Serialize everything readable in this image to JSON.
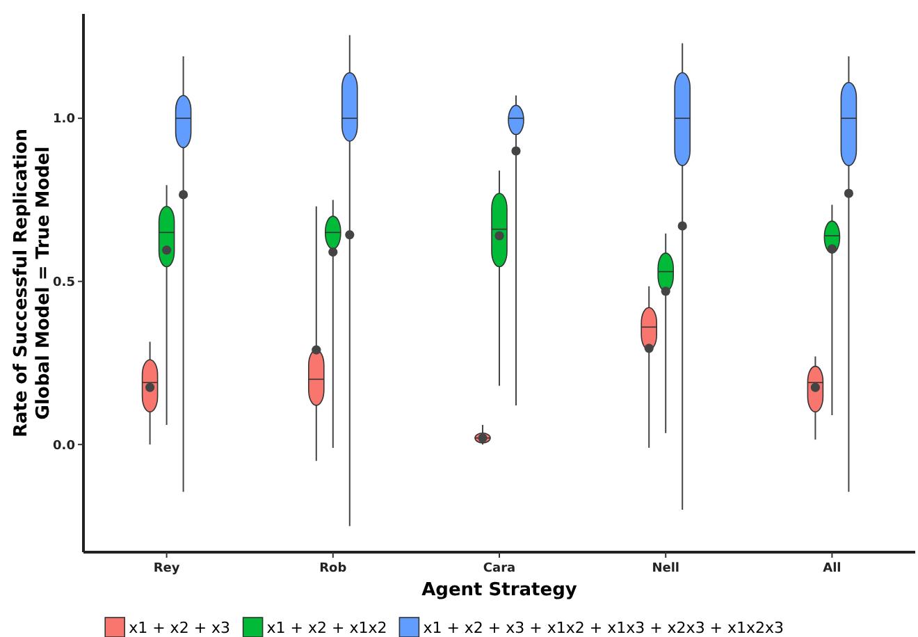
{
  "chart_data": {
    "type": "box",
    "xlabel": "Agent Strategy",
    "ylabel": "Rate of Successful Replication\nGlobal Model = True Model",
    "categories": [
      "Rey",
      "Rob",
      "Cara",
      "Nell",
      "All"
    ],
    "ylim": [
      -0.33,
      1.32
    ],
    "yticks": [
      {
        "value": 0,
        "label": "0.0"
      },
      {
        "value": 0.5,
        "label": "0.5"
      },
      {
        "value": 1,
        "label": "1.0"
      }
    ],
    "grid": false,
    "legend": "bottom",
    "series": [
      {
        "name": "x1 + x2 + x3",
        "color": "#f8766d",
        "boxes": [
          {
            "low": 0.0,
            "q1": 0.1,
            "median": 0.19,
            "q3": 0.26,
            "high": 0.315,
            "mean": 0.175
          },
          {
            "low": -0.05,
            "q1": 0.12,
            "median": 0.2,
            "q3": 0.29,
            "high": 0.73,
            "mean": 0.29
          },
          {
            "low": 0.0,
            "q1": 0.005,
            "median": 0.02,
            "q3": 0.035,
            "high": 0.06,
            "mean": 0.02
          },
          {
            "low": -0.01,
            "q1": 0.29,
            "median": 0.36,
            "q3": 0.42,
            "high": 0.485,
            "mean": 0.295
          },
          {
            "low": 0.015,
            "q1": 0.1,
            "median": 0.19,
            "q3": 0.24,
            "high": 0.27,
            "mean": 0.175
          }
        ]
      },
      {
        "name": "x1 + x2 + x1x2",
        "color": "#00ba38",
        "boxes": [
          {
            "low": 0.06,
            "q1": 0.545,
            "median": 0.65,
            "q3": 0.73,
            "high": 0.795,
            "mean": 0.596
          },
          {
            "low": -0.01,
            "q1": 0.6,
            "median": 0.65,
            "q3": 0.7,
            "high": 0.75,
            "mean": 0.59
          },
          {
            "low": 0.18,
            "q1": 0.545,
            "median": 0.66,
            "q3": 0.77,
            "high": 0.84,
            "mean": 0.64
          },
          {
            "low": 0.035,
            "q1": 0.47,
            "median": 0.53,
            "q3": 0.587,
            "high": 0.647,
            "mean": 0.47
          },
          {
            "low": 0.09,
            "q1": 0.587,
            "median": 0.64,
            "q3": 0.685,
            "high": 0.735,
            "mean": 0.6
          }
        ]
      },
      {
        "name": "x1 + x2 + x3 + x1x2 + x1x3 + x2x3 + x1x2x3",
        "color": "#619cff",
        "boxes": [
          {
            "low": -0.145,
            "q1": 0.91,
            "median": 1.0,
            "q3": 1.07,
            "high": 1.19,
            "mean": 0.766
          },
          {
            "low": -0.25,
            "q1": 0.93,
            "median": 1.0,
            "q3": 1.14,
            "high": 1.255,
            "mean": 0.643
          },
          {
            "low": 0.12,
            "q1": 0.95,
            "median": 1.0,
            "q3": 1.04,
            "high": 1.07,
            "mean": 0.9
          },
          {
            "low": -0.2,
            "q1": 0.855,
            "median": 1.0,
            "q3": 1.14,
            "high": 1.23,
            "mean": 0.67
          },
          {
            "low": -0.145,
            "q1": 0.855,
            "median": 1.0,
            "q3": 1.11,
            "high": 1.19,
            "mean": 0.77
          }
        ]
      }
    ]
  }
}
